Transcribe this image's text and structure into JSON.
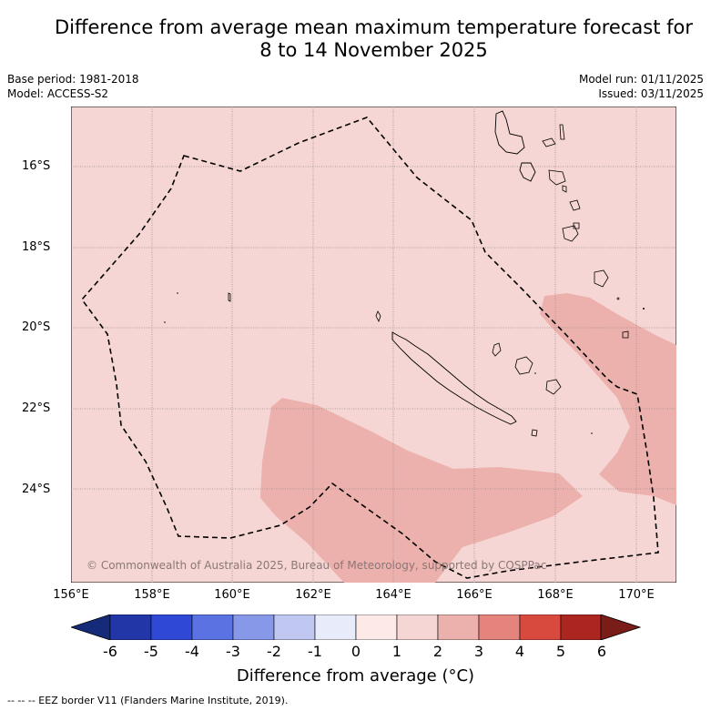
{
  "title": {
    "line1": "Difference from average mean maximum temperature forecast for",
    "line2": "8 to 14 November 2025"
  },
  "meta_left": {
    "base_period": "Base period: 1981-2018",
    "model": "Model: ACCESS-S2"
  },
  "meta_right": {
    "model_run": "Model run: 01/11/2025",
    "issued": "Issued: 03/11/2025"
  },
  "map": {
    "lat_labels": [
      "16°S",
      "18°S",
      "20°S",
      "22°S",
      "24°S"
    ],
    "lon_labels": [
      "156°E",
      "158°E",
      "160°E",
      "162°E",
      "164°E",
      "166°E",
      "168°E",
      "170°E"
    ],
    "copyright": "© Commonwealth of Australia 2025, Bureau of Meteorology, supported by COSPPac",
    "background_color": "#f5d6d4",
    "anomaly_color": "#edb1ad"
  },
  "colorbar": {
    "ticks": [
      "-6",
      "-5",
      "-4",
      "-3",
      "-2",
      "-1",
      "0",
      "1",
      "2",
      "3",
      "4",
      "5",
      "6"
    ],
    "colors": [
      "#2236a8",
      "#2f49d6",
      "#5a72e2",
      "#8898e8",
      "#c0c8f2",
      "#e8ecfa",
      "#fde9e7",
      "#f5d6d4",
      "#edb1ad",
      "#e5847c",
      "#d94a3e",
      "#ab2620"
    ],
    "low_extend_color": "#162a7a",
    "high_extend_color": "#7a1c18",
    "label": "Difference from average (°C)"
  },
  "eez_note": "-- -- -- EEZ border V11 (Flanders Marine Institute, 2019)."
}
